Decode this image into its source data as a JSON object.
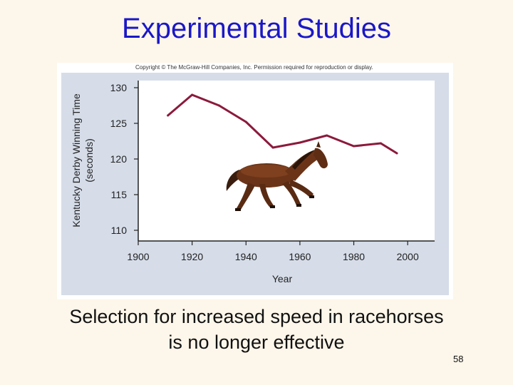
{
  "slide": {
    "title": "Experimental Studies",
    "caption_line1": "Selection for increased speed in racehorses",
    "caption_line2": "is no longer effective",
    "page_number": "58"
  },
  "figure": {
    "copyright": "Copyright © The McGraw-Hill Companies, Inc. Permission required for reproduction or display."
  },
  "chart_data": {
    "type": "line",
    "title": "",
    "xlabel": "Year",
    "ylabel": "Kentucky Derby Winning Time",
    "ylabel_line2": "(seconds)",
    "x_ticks": [
      1900,
      1920,
      1940,
      1960,
      1980,
      2000
    ],
    "y_ticks": [
      110,
      115,
      120,
      125,
      130
    ],
    "xlim": [
      1900,
      2010
    ],
    "ylim": [
      108.5,
      131
    ],
    "grid": false,
    "series": [
      {
        "color": "#8b1a3c",
        "points": [
          {
            "x": 1911,
            "y": 126.1
          },
          {
            "x": 1920,
            "y": 129.0
          },
          {
            "x": 1930,
            "y": 127.5
          },
          {
            "x": 1940,
            "y": 125.2
          },
          {
            "x": 1950,
            "y": 121.6
          },
          {
            "x": 1960,
            "y": 122.3
          },
          {
            "x": 1970,
            "y": 123.3
          },
          {
            "x": 1980,
            "y": 121.8
          },
          {
            "x": 1990,
            "y": 122.2
          },
          {
            "x": 1996,
            "y": 120.8
          }
        ]
      }
    ],
    "annotations": [
      {
        "type": "image",
        "icon": "horse-icon",
        "description": "galloping brown horse"
      }
    ],
    "colors": {
      "axis": "#222222",
      "panel_background": "#d6dde9",
      "plot_background": "#ffffff",
      "line": "#8b1a3c"
    }
  }
}
